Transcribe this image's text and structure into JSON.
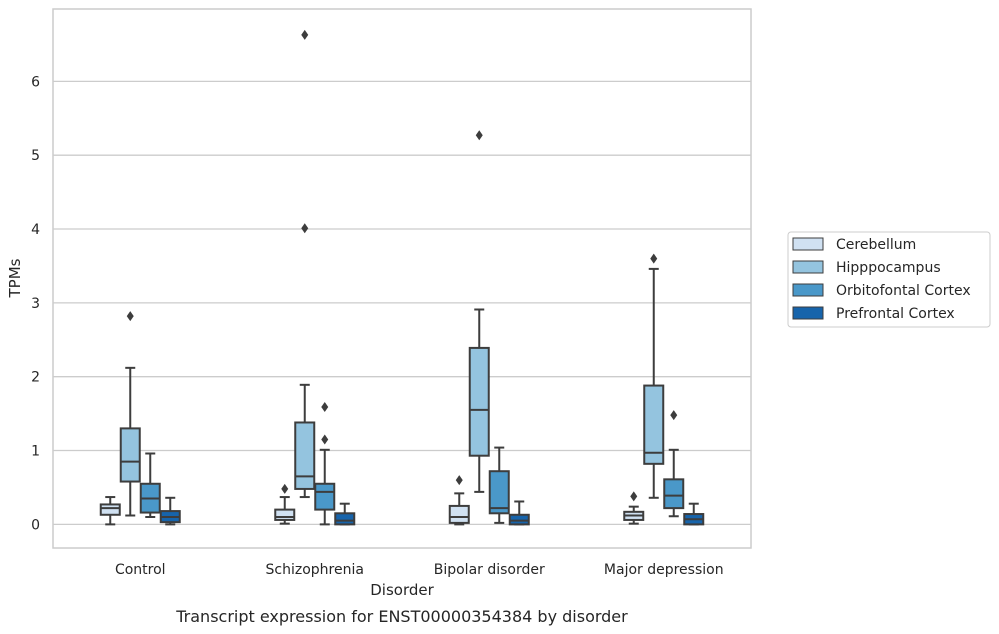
{
  "chart_data": {
    "type": "box",
    "caption": "Transcript expression for ENST00000354384 by disorder",
    "xlabel": "Disorder",
    "ylabel": "TPMs",
    "ylim": [
      -0.32,
      6.98
    ],
    "yticks": [
      0,
      1,
      2,
      3,
      4,
      5,
      6
    ],
    "grid": "horizontal",
    "legend_position": "right",
    "categories": [
      "Control",
      "Schizophrenia",
      "Bipolar disorder",
      "Major depression"
    ],
    "series": [
      {
        "name": "Cerebellum",
        "color": "#d0e1f2",
        "boxes": [
          {
            "whislo": 0.0,
            "q1": 0.13,
            "median": 0.22,
            "q3": 0.27,
            "whishi": 0.37,
            "fliers": []
          },
          {
            "whislo": 0.01,
            "q1": 0.06,
            "median": 0.1,
            "q3": 0.2,
            "whishi": 0.37,
            "fliers": [
              0.48
            ]
          },
          {
            "whislo": 0.0,
            "q1": 0.02,
            "median": 0.1,
            "q3": 0.25,
            "whishi": 0.42,
            "fliers": [
              0.6
            ]
          },
          {
            "whislo": 0.01,
            "q1": 0.06,
            "median": 0.12,
            "q3": 0.17,
            "whishi": 0.24,
            "fliers": [
              0.38
            ]
          }
        ]
      },
      {
        "name": "Hipppocampus",
        "color": "#94c4df",
        "boxes": [
          {
            "whislo": 0.12,
            "q1": 0.58,
            "median": 0.85,
            "q3": 1.3,
            "whishi": 2.12,
            "fliers": [
              2.82
            ]
          },
          {
            "whislo": 0.37,
            "q1": 0.48,
            "median": 0.65,
            "q3": 1.38,
            "whishi": 1.89,
            "fliers": [
              4.01,
              6.63
            ]
          },
          {
            "whislo": 0.44,
            "q1": 0.93,
            "median": 1.55,
            "q3": 2.39,
            "whishi": 2.91,
            "fliers": [
              5.27
            ]
          },
          {
            "whislo": 0.36,
            "q1": 0.82,
            "median": 0.97,
            "q3": 1.88,
            "whishi": 3.46,
            "fliers": [
              3.6
            ]
          }
        ]
      },
      {
        "name": "Orbitofontal Cortex",
        "color": "#4a98c9",
        "boxes": [
          {
            "whislo": 0.1,
            "q1": 0.16,
            "median": 0.35,
            "q3": 0.55,
            "whishi": 0.96,
            "fliers": []
          },
          {
            "whislo": 0.0,
            "q1": 0.2,
            "median": 0.44,
            "q3": 0.55,
            "whishi": 1.01,
            "fliers": [
              1.15,
              1.59
            ]
          },
          {
            "whislo": 0.02,
            "q1": 0.15,
            "median": 0.22,
            "q3": 0.72,
            "whishi": 1.04,
            "fliers": []
          },
          {
            "whislo": 0.11,
            "q1": 0.22,
            "median": 0.39,
            "q3": 0.61,
            "whishi": 1.01,
            "fliers": [
              1.48
            ]
          }
        ]
      },
      {
        "name": "Prefrontal Cortex",
        "color": "#1764ab",
        "boxes": [
          {
            "whislo": 0.0,
            "q1": 0.03,
            "median": 0.1,
            "q3": 0.18,
            "whishi": 0.36,
            "fliers": []
          },
          {
            "whislo": 0.0,
            "q1": 0.0,
            "median": 0.05,
            "q3": 0.15,
            "whishi": 0.28,
            "fliers": []
          },
          {
            "whislo": 0.0,
            "q1": 0.0,
            "median": 0.05,
            "q3": 0.13,
            "whishi": 0.31,
            "fliers": []
          },
          {
            "whislo": 0.0,
            "q1": 0.0,
            "median": 0.07,
            "q3": 0.14,
            "whishi": 0.28,
            "fliers": []
          }
        ]
      }
    ]
  }
}
